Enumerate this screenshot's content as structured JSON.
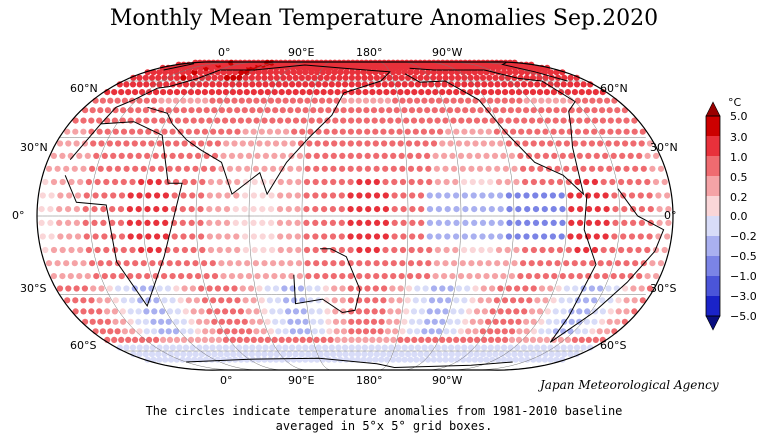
{
  "title": "Monthly Mean Temperature Anomalies Sep.2020",
  "agency": "Japan Meteorological Agency",
  "caption_line1": "The circles indicate temperature anomalies from 1981-2010 baseline",
  "caption_line2": "averaged in 5°x 5° grid boxes.",
  "lon_labels": [
    "0°",
    "90°E",
    "180°",
    "90°W"
  ],
  "lat_labels": {
    "n60": "60°N",
    "n30": "30°N",
    "eq": "0°",
    "s30": "30°S",
    "s60": "60°S"
  },
  "colorbar": {
    "unit": "°C",
    "ticks": [
      "5.0",
      "3.0",
      "1.0",
      "0.5",
      "0.2",
      "0.0",
      "−0.2",
      "−0.5",
      "−1.0",
      "−3.0",
      "−5.0"
    ],
    "colors": [
      "#cc0000",
      "#e8313b",
      "#ef6b70",
      "#f5a3a6",
      "#fad6d8",
      "#d8dcf8",
      "#a9b0f0",
      "#7b84e6",
      "#4b55d9",
      "#1a23c8"
    ]
  }
}
